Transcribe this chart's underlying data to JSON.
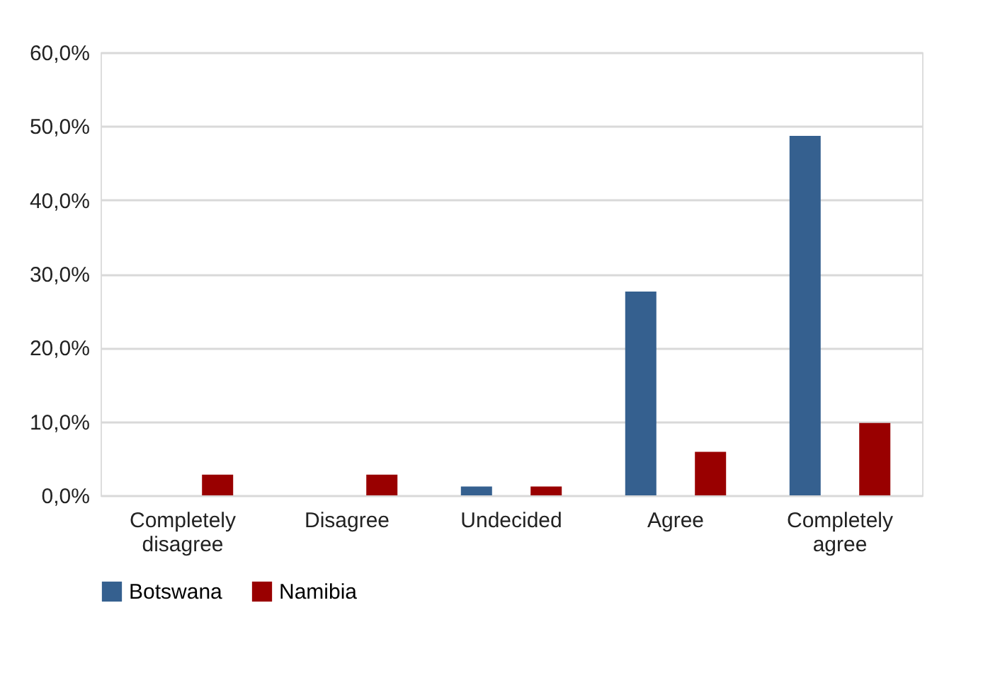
{
  "chart_data": {
    "type": "bar",
    "categories": [
      "Completely disagree",
      "Disagree",
      "Undecided",
      "Agree",
      "Completely agree"
    ],
    "series": [
      {
        "name": "Botswana",
        "color": "#35608f",
        "values": [
          0,
          0,
          1.2,
          27.6,
          48.7
        ]
      },
      {
        "name": "Namibia",
        "color": "#990000",
        "values": [
          2.8,
          2.8,
          1.2,
          5.9,
          9.8
        ]
      }
    ],
    "ylim": [
      0,
      60
    ],
    "yticks": [
      {
        "value": 0,
        "label": "0,0%"
      },
      {
        "value": 10,
        "label": "10,0%"
      },
      {
        "value": 20,
        "label": "20,0%"
      },
      {
        "value": 30,
        "label": "30,0%"
      },
      {
        "value": 40,
        "label": "40,0%"
      },
      {
        "value": 50,
        "label": "50,0%"
      },
      {
        "value": 60,
        "label": "60,0%"
      }
    ],
    "grid": "y",
    "legend": "bottom"
  }
}
